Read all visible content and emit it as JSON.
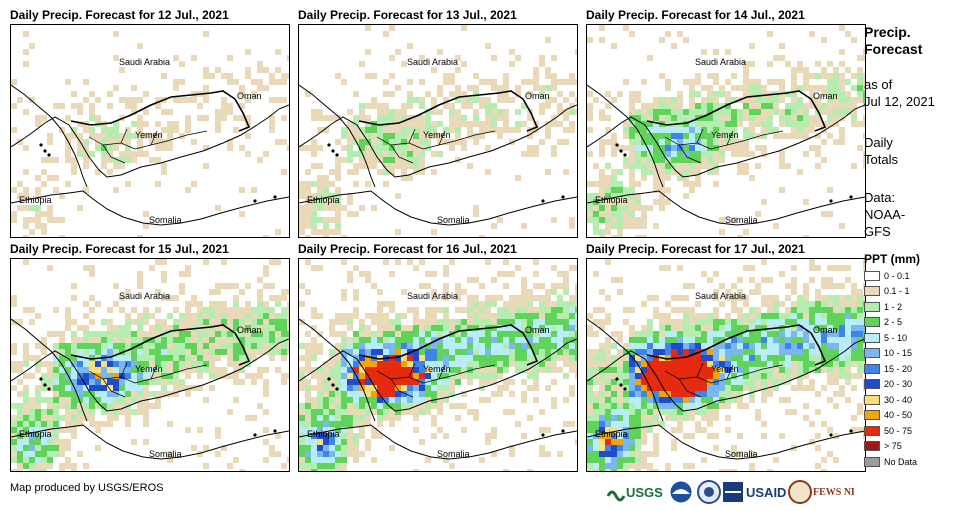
{
  "panels": [
    {
      "title": "Daily Precip. Forecast for 12 Jul., 2021",
      "intensity": 0.2
    },
    {
      "title": "Daily Precip. Forecast for 13 Jul., 2021",
      "intensity": 0.3
    },
    {
      "title": "Daily Precip. Forecast for 14 Jul., 2021",
      "intensity": 0.45
    },
    {
      "title": "Daily Precip. Forecast for 15 Jul., 2021",
      "intensity": 0.6
    },
    {
      "title": "Daily Precip. Forecast for 16 Jul., 2021",
      "intensity": 0.85
    },
    {
      "title": "Daily Precip. Forecast for 17 Jul., 2021",
      "intensity": 1.0
    }
  ],
  "map_labels": {
    "saudi": "Saudi Arabia",
    "oman": "Oman",
    "yemen": "Yemen",
    "ethiopia": "Ethiopia",
    "somalia": "Somalia"
  },
  "sidebar": {
    "title_line1": "Precip.",
    "title_line2": "Forecast",
    "asof_line1": "as of",
    "asof_line2": "Jul 12, 2021",
    "daily_line1": "Daily",
    "daily_line2": "Totals",
    "data_line1": "Data:",
    "data_line2": "NOAA-",
    "data_line3": "GFS"
  },
  "legend": {
    "title": "PPT (mm)",
    "items": [
      {
        "label": "0 - 0.1",
        "color": "#ffffff"
      },
      {
        "label": "0.1 - 1",
        "color": "#ead9b8"
      },
      {
        "label": "1 - 2",
        "color": "#b5ecb0"
      },
      {
        "label": "2 - 5",
        "color": "#5fd35a"
      },
      {
        "label": "5 - 10",
        "color": "#b8ecf8"
      },
      {
        "label": "10 - 15",
        "color": "#7ab6ef"
      },
      {
        "label": "15 - 20",
        "color": "#3f84ea"
      },
      {
        "label": "20 - 30",
        "color": "#1f4ccf"
      },
      {
        "label": "30 - 40",
        "color": "#f8df7a"
      },
      {
        "label": "40 - 50",
        "color": "#f2a500"
      },
      {
        "label": "50 - 75",
        "color": "#e52a0e"
      },
      {
        "label": "> 75",
        "color": "#9e1a1a"
      },
      {
        "label": "No Data",
        "color": "#9c9c9c"
      }
    ]
  },
  "credit": "Map produced by USGS/EROS",
  "logos": {
    "usgs": "USGS",
    "usaid": "USAID",
    "fews": "FEWS NET"
  }
}
